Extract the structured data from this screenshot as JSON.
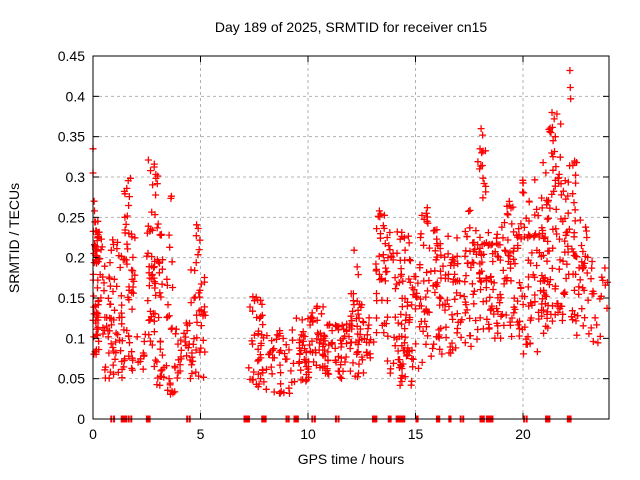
{
  "page": {
    "background": "#ffffff"
  },
  "chart_data": {
    "type": "scatter",
    "title": "Day 189 of 2025, SRMTID for receiver cn15",
    "xlabel": "GPS time / hours",
    "ylabel": "SRMTID / TECUs",
    "xlim": [
      0,
      24
    ],
    "ylim": [
      0,
      0.45
    ],
    "xticks": [
      0,
      5,
      10,
      15,
      20
    ],
    "yticks": [
      "0",
      "0.05",
      "0.1",
      "0.15",
      "0.2",
      "0.25",
      "0.3",
      "0.35",
      "0.4",
      "0.45"
    ],
    "ytick_values": [
      0,
      0.05,
      0.1,
      0.15,
      0.2,
      0.25,
      0.3,
      0.35,
      0.4,
      0.45
    ],
    "grid": true,
    "legend": "none",
    "marker": "plus",
    "marker_color": "#ff0000",
    "grid_color": "#b3b3b3",
    "axis_color": "#000000",
    "seed": 1890109,
    "points": [
      [
        0.0,
        0.335
      ],
      [
        0.0,
        0.305
      ],
      [
        0.05,
        0.27
      ],
      [
        0.07,
        0.258
      ],
      [
        18.05,
        0.36
      ],
      [
        18.12,
        0.352
      ],
      [
        18.0,
        0.335
      ],
      [
        18.08,
        0.33
      ],
      [
        17.98,
        0.31
      ],
      [
        22.18,
        0.432
      ],
      [
        22.2,
        0.411
      ],
      [
        22.22,
        0.397
      ],
      [
        21.35,
        0.38
      ],
      [
        21.45,
        0.372
      ],
      [
        21.3,
        0.355
      ],
      [
        21.5,
        0.35
      ],
      [
        21.4,
        0.345
      ],
      [
        15.55,
        0.262
      ],
      [
        15.5,
        0.255
      ]
    ],
    "clusters": [
      [
        0.0,
        0.25,
        0.12,
        0.25,
        30
      ],
      [
        0.0,
        0.3,
        0.08,
        0.125,
        12
      ],
      [
        0.1,
        0.55,
        0.1,
        0.24,
        32
      ],
      [
        0.55,
        1.1,
        0.05,
        0.135,
        26
      ],
      [
        0.7,
        1.05,
        0.135,
        0.25,
        12
      ],
      [
        1.1,
        1.95,
        0.05,
        0.23,
        58
      ],
      [
        1.45,
        1.75,
        0.23,
        0.3,
        12
      ],
      [
        2.05,
        2.5,
        0.06,
        0.11,
        10
      ],
      [
        2.5,
        3.25,
        0.07,
        0.235,
        52
      ],
      [
        2.55,
        3.05,
        0.235,
        0.325,
        16
      ],
      [
        2.85,
        3.45,
        0.035,
        0.075,
        12
      ],
      [
        3.3,
        3.75,
        0.1,
        0.285,
        14
      ],
      [
        3.45,
        3.8,
        0.03,
        0.06,
        8
      ],
      [
        3.8,
        4.5,
        0.05,
        0.12,
        25
      ],
      [
        4.5,
        5.25,
        0.05,
        0.19,
        40
      ],
      [
        4.65,
        5.0,
        0.19,
        0.26,
        7
      ],
      [
        7.2,
        7.9,
        0.04,
        0.155,
        40
      ],
      [
        7.9,
        9.2,
        0.03,
        0.11,
        38
      ],
      [
        9.2,
        10.1,
        0.04,
        0.125,
        42
      ],
      [
        10.1,
        10.8,
        0.06,
        0.14,
        40
      ],
      [
        10.8,
        12.0,
        0.05,
        0.12,
        52
      ],
      [
        12.0,
        12.35,
        0.08,
        0.21,
        18
      ],
      [
        12.0,
        12.6,
        0.05,
        0.15,
        24
      ],
      [
        12.6,
        13.15,
        0.06,
        0.13,
        14
      ],
      [
        13.15,
        13.7,
        0.1,
        0.245,
        26
      ],
      [
        13.2,
        13.6,
        0.235,
        0.258,
        6
      ],
      [
        13.6,
        14.4,
        0.05,
        0.235,
        48
      ],
      [
        14.2,
        14.9,
        0.04,
        0.095,
        20
      ],
      [
        14.4,
        15.2,
        0.06,
        0.235,
        40
      ],
      [
        15.3,
        15.65,
        0.24,
        0.262,
        5
      ],
      [
        15.2,
        16.1,
        0.07,
        0.235,
        48
      ],
      [
        16.1,
        16.9,
        0.08,
        0.235,
        48
      ],
      [
        16.9,
        17.9,
        0.09,
        0.24,
        52
      ],
      [
        17.4,
        17.55,
        0.24,
        0.26,
        2
      ],
      [
        17.9,
        18.3,
        0.1,
        0.24,
        25
      ],
      [
        17.9,
        18.3,
        0.24,
        0.345,
        10
      ],
      [
        18.3,
        19.1,
        0.1,
        0.25,
        48
      ],
      [
        19.1,
        19.9,
        0.1,
        0.272,
        52
      ],
      [
        19.9,
        20.8,
        0.08,
        0.297,
        58
      ],
      [
        20.8,
        21.2,
        0.1,
        0.325,
        45
      ],
      [
        21.2,
        21.9,
        0.12,
        0.385,
        55
      ],
      [
        21.9,
        22.5,
        0.12,
        0.325,
        45
      ],
      [
        22.5,
        23.05,
        0.1,
        0.26,
        26
      ],
      [
        23.05,
        23.7,
        0.09,
        0.2,
        16
      ],
      [
        23.7,
        23.95,
        0.13,
        0.19,
        5
      ]
    ],
    "zero_markers": [
      [
        0.85,
        0.09
      ],
      [
        0.98,
        0.09
      ],
      [
        1.44,
        0.3
      ],
      [
        1.66,
        0.09
      ],
      [
        1.78,
        0.09
      ],
      [
        2.57,
        0.22
      ],
      [
        4.38,
        0.09
      ],
      [
        4.5,
        0.09
      ],
      [
        7.15,
        0.3
      ],
      [
        7.95,
        0.25
      ],
      [
        9.0,
        0.09
      ],
      [
        9.1,
        0.09
      ],
      [
        9.45,
        0.25
      ],
      [
        10.2,
        0.09
      ],
      [
        10.32,
        0.09
      ],
      [
        11.3,
        0.09
      ],
      [
        11.42,
        0.09
      ],
      [
        13.1,
        0.25
      ],
      [
        13.8,
        0.18
      ],
      [
        14.3,
        0.45
      ],
      [
        15.07,
        0.15
      ],
      [
        16.05,
        0.2
      ],
      [
        16.6,
        0.15
      ],
      [
        17.1,
        0.09
      ],
      [
        17.22,
        0.09
      ],
      [
        18.1,
        0.25
      ],
      [
        18.45,
        0.35
      ],
      [
        20.05,
        0.09
      ],
      [
        20.17,
        0.09
      ],
      [
        21.15,
        0.25
      ],
      [
        22.15,
        0.22
      ]
    ]
  }
}
